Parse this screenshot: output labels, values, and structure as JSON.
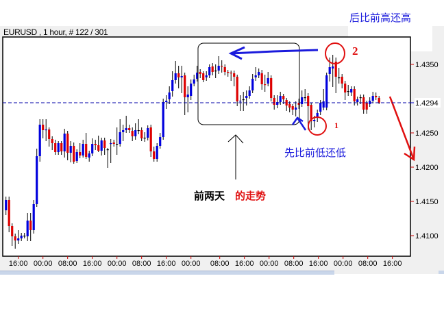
{
  "window": {
    "title": "EURUSD , 1 hour, # 122 / 301"
  },
  "colors": {
    "bull": "#0000dd",
    "bear": "#dd0000",
    "doji": "#000000",
    "current_line": "#0000aa",
    "annotation_blue": "#1a1adc",
    "annotation_red": "#e01010"
  },
  "annotations": {
    "top_right": "后比前高还高",
    "lower_low": "先比前低还低",
    "prev_two_days_black": "前两天",
    "prev_two_days_red": "的走势",
    "circle1_label": "1",
    "circle2_label": "2"
  },
  "chart_data": {
    "type": "candlestick",
    "symbol": "EURUSD",
    "timeframe": "1 hour",
    "ylim": [
      1.407,
      1.439
    ],
    "y_ticks": [
      "1.4350",
      "1.4250",
      "1.4200",
      "1.4150",
      "1.4100"
    ],
    "current_price": "1.4294",
    "x_ticks": [
      "16:00",
      "00:00",
      "08:00",
      "16:00",
      "00:00",
      "08:00",
      "16:00",
      "00:00",
      "08:00",
      "16:00",
      "00:00",
      "08:00",
      "16:00",
      "00:00",
      "08:00",
      "16:00"
    ],
    "ohlc_fields": [
      "open",
      "high",
      "low",
      "close"
    ],
    "candles": [
      [
        1.4137,
        1.4157,
        1.413,
        1.4152
      ],
      [
        1.4152,
        1.4157,
        1.4105,
        1.4114
      ],
      [
        1.4114,
        1.4118,
        1.4085,
        1.4099
      ],
      [
        1.4099,
        1.4103,
        1.4081,
        1.4093
      ],
      [
        1.4093,
        1.4108,
        1.4088,
        1.4096
      ],
      [
        1.4096,
        1.4104,
        1.4092,
        1.41
      ],
      [
        1.41,
        1.4104,
        1.4096,
        1.41
      ],
      [
        1.4099,
        1.4133,
        1.4092,
        1.4122
      ],
      [
        1.4122,
        1.4133,
        1.4092,
        1.4108
      ],
      [
        1.4108,
        1.4152,
        1.4103,
        1.4146
      ],
      [
        1.4146,
        1.4227,
        1.4142,
        1.4216
      ],
      [
        1.4216,
        1.427,
        1.4208,
        1.4262
      ],
      [
        1.4262,
        1.427,
        1.4242,
        1.4254
      ],
      [
        1.4254,
        1.427,
        1.4238,
        1.4255
      ],
      [
        1.4255,
        1.4258,
        1.423,
        1.4241
      ],
      [
        1.4241,
        1.4245,
        1.4225,
        1.4235
      ],
      [
        1.4235,
        1.424,
        1.4218,
        1.4222
      ],
      [
        1.4222,
        1.4238,
        1.4218,
        1.4235
      ],
      [
        1.4235,
        1.4238,
        1.4218,
        1.4223
      ],
      [
        1.4223,
        1.4256,
        1.4214,
        1.4249
      ],
      [
        1.4249,
        1.4253,
        1.421,
        1.4221
      ],
      [
        1.4221,
        1.4238,
        1.4207,
        1.4231
      ],
      [
        1.4231,
        1.4236,
        1.4205,
        1.4208
      ],
      [
        1.4209,
        1.4226,
        1.4206,
        1.4222
      ],
      [
        1.4222,
        1.4235,
        1.4213,
        1.4217
      ],
      [
        1.4217,
        1.424,
        1.4214,
        1.4234
      ],
      [
        1.4234,
        1.425,
        1.4212,
        1.4215
      ],
      [
        1.4214,
        1.4224,
        1.4208,
        1.422
      ],
      [
        1.422,
        1.4242,
        1.4216,
        1.4234
      ],
      [
        1.4234,
        1.424,
        1.4225,
        1.4232
      ],
      [
        1.4232,
        1.4246,
        1.4222,
        1.4224
      ],
      [
        1.4224,
        1.4243,
        1.4217,
        1.4239
      ],
      [
        1.4239,
        1.4243,
        1.4218,
        1.4228
      ],
      [
        1.4226,
        1.4228,
        1.4199,
        1.4226
      ],
      [
        1.4234,
        1.4241,
        1.4206,
        1.4235
      ],
      [
        1.4236,
        1.424,
        1.423,
        1.4234
      ],
      [
        1.4234,
        1.4258,
        1.4218,
        1.4234
      ],
      [
        1.4234,
        1.427,
        1.423,
        1.4251
      ],
      [
        1.4251,
        1.4262,
        1.4238,
        1.4254
      ],
      [
        1.4254,
        1.4275,
        1.425,
        1.4257
      ],
      [
        1.4257,
        1.4262,
        1.425,
        1.4254
      ],
      [
        1.4253,
        1.4258,
        1.4238,
        1.4245
      ],
      [
        1.4245,
        1.4264,
        1.424,
        1.4254
      ],
      [
        1.4254,
        1.427,
        1.4248,
        1.4254
      ],
      [
        1.4254,
        1.4258,
        1.4238,
        1.4242
      ],
      [
        1.4243,
        1.4251,
        1.4237,
        1.4243
      ],
      [
        1.4243,
        1.4261,
        1.4239,
        1.4257
      ],
      [
        1.4258,
        1.4262,
        1.4215,
        1.4223
      ],
      [
        1.4223,
        1.423,
        1.4208,
        1.4212
      ],
      [
        1.4212,
        1.4235,
        1.4208,
        1.4231
      ],
      [
        1.4231,
        1.425,
        1.4227,
        1.4244
      ],
      [
        1.4244,
        1.43,
        1.424,
        1.4295
      ],
      [
        1.4295,
        1.4305,
        1.4285,
        1.4297
      ],
      [
        1.4299,
        1.4318,
        1.4292,
        1.4309
      ],
      [
        1.4311,
        1.434,
        1.4303,
        1.4327
      ],
      [
        1.4327,
        1.4355,
        1.4322,
        1.4337
      ],
      [
        1.4337,
        1.4348,
        1.4315,
        1.4331
      ],
      [
        1.4331,
        1.4348,
        1.4308,
        1.4333
      ],
      [
        1.4334,
        1.4338,
        1.4276,
        1.4302
      ],
      [
        1.4302,
        1.4318,
        1.428,
        1.4306
      ],
      [
        1.4304,
        1.4328,
        1.4298,
        1.4322
      ],
      [
        1.4322,
        1.4335,
        1.4318,
        1.4328
      ],
      [
        1.4329,
        1.4348,
        1.4325,
        1.4338
      ],
      [
        1.4339,
        1.4343,
        1.433,
        1.4336
      ],
      [
        1.4337,
        1.434,
        1.4324,
        1.4327
      ],
      [
        1.4331,
        1.434,
        1.4326,
        1.4334
      ],
      [
        1.4334,
        1.435,
        1.433,
        1.4346
      ],
      [
        1.4347,
        1.4352,
        1.4334,
        1.4339
      ],
      [
        1.4341,
        1.435,
        1.433,
        1.4341
      ],
      [
        1.4341,
        1.4362,
        1.4336,
        1.4348
      ],
      [
        1.4348,
        1.4356,
        1.4338,
        1.4347
      ],
      [
        1.4346,
        1.435,
        1.4334,
        1.4339
      ],
      [
        1.4339,
        1.4342,
        1.4332,
        1.4338
      ],
      [
        1.4338,
        1.4341,
        1.4326,
        1.4337
      ],
      [
        1.4337,
        1.4341,
        1.4318,
        1.4332
      ],
      [
        1.4332,
        1.4335,
        1.4289,
        1.4296
      ],
      [
        1.4296,
        1.4305,
        1.4282,
        1.4297
      ],
      [
        1.4299,
        1.431,
        1.4282,
        1.4299
      ],
      [
        1.4301,
        1.4312,
        1.429,
        1.4304
      ],
      [
        1.4304,
        1.4318,
        1.43,
        1.4312
      ],
      [
        1.4312,
        1.4336,
        1.4308,
        1.4329
      ],
      [
        1.4331,
        1.4346,
        1.4326,
        1.4334
      ],
      [
        1.4334,
        1.4344,
        1.433,
        1.4339
      ],
      [
        1.4337,
        1.4342,
        1.4313,
        1.4321
      ],
      [
        1.4321,
        1.4335,
        1.431,
        1.432
      ],
      [
        1.4322,
        1.4339,
        1.4318,
        1.433
      ],
      [
        1.433,
        1.4334,
        1.4296,
        1.4301
      ],
      [
        1.4301,
        1.4305,
        1.4284,
        1.4291
      ],
      [
        1.4291,
        1.4305,
        1.4286,
        1.4295
      ],
      [
        1.4295,
        1.431,
        1.4291,
        1.4304
      ],
      [
        1.4304,
        1.4307,
        1.4292,
        1.4299
      ],
      [
        1.4298,
        1.4301,
        1.4282,
        1.429
      ],
      [
        1.4292,
        1.4296,
        1.428,
        1.4287
      ],
      [
        1.4289,
        1.4292,
        1.4276,
        1.4284
      ],
      [
        1.4284,
        1.4296,
        1.4274,
        1.4287
      ],
      [
        1.4294,
        1.43,
        1.4285,
        1.4291
      ],
      [
        1.4292,
        1.4312,
        1.4288,
        1.4302
      ],
      [
        1.4302,
        1.4314,
        1.4296,
        1.4302
      ],
      [
        1.4304,
        1.4308,
        1.4255,
        1.4289
      ],
      [
        1.4291,
        1.4294,
        1.4254,
        1.4267
      ],
      [
        1.4267,
        1.4275,
        1.4258,
        1.4269
      ],
      [
        1.4272,
        1.4284,
        1.4266,
        1.4279
      ],
      [
        1.4281,
        1.4298,
        1.4276,
        1.4294
      ],
      [
        1.4287,
        1.4314,
        1.4283,
        1.4296
      ],
      [
        1.4287,
        1.4338,
        1.4283,
        1.4334
      ],
      [
        1.4336,
        1.436,
        1.4325,
        1.4346
      ],
      [
        1.4344,
        1.4364,
        1.4317,
        1.4347
      ],
      [
        1.4354,
        1.436,
        1.4308,
        1.4332
      ],
      [
        1.4331,
        1.4345,
        1.4322,
        1.4331
      ],
      [
        1.4332,
        1.4336,
        1.4315,
        1.4322
      ],
      [
        1.4322,
        1.4326,
        1.4298,
        1.4309
      ],
      [
        1.4311,
        1.432,
        1.4304,
        1.4311
      ],
      [
        1.4309,
        1.4318,
        1.4304,
        1.4314
      ],
      [
        1.4314,
        1.4318,
        1.429,
        1.4296
      ],
      [
        1.4295,
        1.4303,
        1.429,
        1.4299
      ],
      [
        1.4302,
        1.4306,
        1.4292,
        1.4302
      ],
      [
        1.4302,
        1.4306,
        1.4278,
        1.4284
      ],
      [
        1.4294,
        1.4297,
        1.4278,
        1.4284
      ],
      [
        1.4292,
        1.4302,
        1.4288,
        1.4297
      ],
      [
        1.4297,
        1.431,
        1.4293,
        1.4304
      ],
      [
        1.4304,
        1.4309,
        1.4298,
        1.4302
      ],
      [
        1.4301,
        1.4304,
        1.4292,
        1.4294
      ]
    ]
  }
}
